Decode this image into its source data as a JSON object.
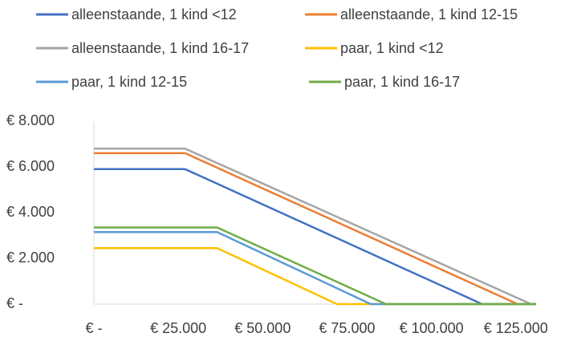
{
  "chart_data": {
    "type": "line",
    "series": [
      {
        "name": "alleenstaande, 1 kind <12",
        "color": "#4472c4",
        "x": [
          0,
          27000,
          115000,
          131000
        ],
        "values": [
          5900,
          5900,
          0,
          0
        ]
      },
      {
        "name": "alleenstaande, 1 kind 12-15",
        "color": "#ed7d31",
        "x": [
          0,
          27000,
          125500,
          131000
        ],
        "values": [
          6600,
          6600,
          0,
          0
        ]
      },
      {
        "name": "alleenstaande, 1 kind 16-17",
        "color": "#a5a5a5",
        "x": [
          0,
          27000,
          129500,
          131000
        ],
        "values": [
          6800,
          6800,
          0,
          0
        ]
      },
      {
        "name": "paar, 1 kind <12",
        "color": "#ffc000",
        "x": [
          0,
          36500,
          72000,
          131000
        ],
        "values": [
          2450,
          2450,
          0,
          0
        ]
      },
      {
        "name": "paar, 1 kind 12-15",
        "color": "#5b9bd5",
        "x": [
          0,
          36500,
          82000,
          131000
        ],
        "values": [
          3150,
          3150,
          0,
          0
        ]
      },
      {
        "name": "paar, 1 kind 16-17",
        "color": "#70ad47",
        "x": [
          0,
          36500,
          86500,
          131000
        ],
        "values": [
          3350,
          3350,
          0,
          0
        ]
      }
    ],
    "xlim": [
      0,
      131000
    ],
    "xticks": [
      {
        "value": 0,
        "label": "€ -"
      },
      {
        "value": 25000,
        "label": "€ 25.000"
      },
      {
        "value": 50000,
        "label": "€ 50.000"
      },
      {
        "value": 75000,
        "label": "€ 75.000"
      },
      {
        "value": 100000,
        "label": "€ 100.000"
      },
      {
        "value": 125000,
        "label": "€ 125.000"
      }
    ],
    "ylim": [
      0,
      8000
    ],
    "yticks": [
      {
        "value": 0,
        "label": "€ -"
      },
      {
        "value": 2000,
        "label": "€ 2.000"
      },
      {
        "value": 4000,
        "label": "€ 4.000"
      },
      {
        "value": 6000,
        "label": "€ 6.000"
      },
      {
        "value": 8000,
        "label": "€ 8.000"
      }
    ],
    "legend": "top",
    "grid": false
  }
}
